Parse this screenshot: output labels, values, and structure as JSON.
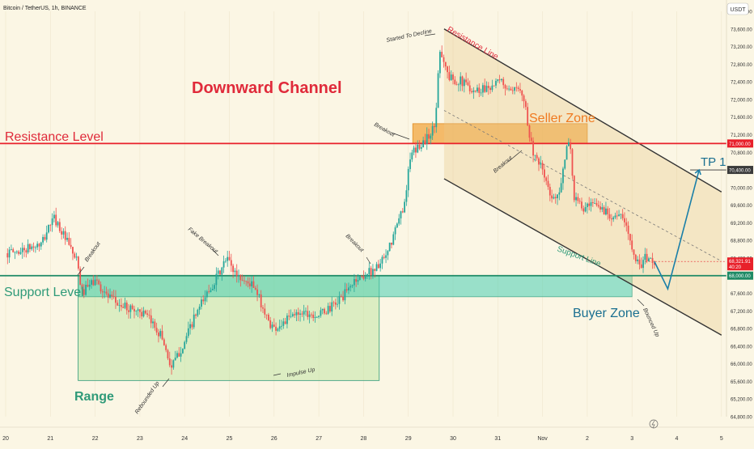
{
  "header": {
    "title": "Bitcoin / TetherUS, 1h, BINANCE",
    "currency": "USDT"
  },
  "chart_data": {
    "type": "candlestick",
    "ylim": [
      64800,
      74000
    ],
    "y_ticks": [
      "74,000.00",
      "73,600.00",
      "73,200.00",
      "72,800.00",
      "72,400.00",
      "72,000.00",
      "71,600.00",
      "71,200.00",
      "70,800.00",
      "70,400.00",
      "70,000.00",
      "69,600.00",
      "69,200.00",
      "68,800.00",
      "68,400.00",
      "68,000.00",
      "67,600.00",
      "67,200.00",
      "66,800.00",
      "66,400.00",
      "66,000.00",
      "65,600.00",
      "65,200.00",
      "64,800.00"
    ],
    "x_ticks": [
      "20",
      "21",
      "22",
      "23",
      "24",
      "25",
      "26",
      "27",
      "28",
      "29",
      "30",
      "31",
      "Nov",
      "2",
      "3",
      "4",
      "5"
    ],
    "x_range": [
      0,
      16
    ],
    "price_path": [
      [
        0.0,
        68510
      ],
      [
        0.3,
        68550
      ],
      [
        0.6,
        68650
      ],
      [
        0.8,
        68700
      ],
      [
        1.0,
        69200
      ],
      [
        1.1,
        69300
      ],
      [
        1.2,
        69100
      ],
      [
        1.4,
        68700
      ],
      [
        1.6,
        68300
      ],
      [
        1.7,
        67600
      ],
      [
        1.8,
        67700
      ],
      [
        2.0,
        67900
      ],
      [
        2.3,
        67500
      ],
      [
        2.6,
        67300
      ],
      [
        3.0,
        67200
      ],
      [
        3.3,
        66900
      ],
      [
        3.5,
        66600
      ],
      [
        3.7,
        65900
      ],
      [
        3.8,
        66100
      ],
      [
        4.0,
        66500
      ],
      [
        4.2,
        67000
      ],
      [
        4.5,
        67600
      ],
      [
        4.8,
        68100
      ],
      [
        4.95,
        68400
      ],
      [
        5.1,
        68100
      ],
      [
        5.3,
        67900
      ],
      [
        5.5,
        67800
      ],
      [
        5.7,
        67400
      ],
      [
        5.85,
        67000
      ],
      [
        6.0,
        66800
      ],
      [
        6.3,
        67000
      ],
      [
        6.6,
        67200
      ],
      [
        7.0,
        67100
      ],
      [
        7.3,
        67300
      ],
      [
        7.6,
        67600
      ],
      [
        7.8,
        67900
      ],
      [
        8.0,
        68000
      ],
      [
        8.3,
        68200
      ],
      [
        8.5,
        68400
      ],
      [
        8.7,
        69000
      ],
      [
        8.9,
        69600
      ],
      [
        9.05,
        70700
      ],
      [
        9.2,
        70900
      ],
      [
        9.4,
        71100
      ],
      [
        9.6,
        71400
      ],
      [
        9.7,
        73200
      ],
      [
        9.9,
        72500
      ],
      [
        10.2,
        72400
      ],
      [
        10.5,
        72200
      ],
      [
        10.8,
        72300
      ],
      [
        11.1,
        72400
      ],
      [
        11.3,
        72100
      ],
      [
        11.5,
        72300
      ],
      [
        11.6,
        72000
      ],
      [
        11.7,
        71200
      ],
      [
        11.85,
        70600
      ],
      [
        12.0,
        70400
      ],
      [
        12.2,
        69700
      ],
      [
        12.4,
        70000
      ],
      [
        12.6,
        71200
      ],
      [
        12.7,
        69800
      ],
      [
        12.9,
        69500
      ],
      [
        13.2,
        69600
      ],
      [
        13.5,
        69400
      ],
      [
        13.8,
        69300
      ],
      [
        14.0,
        68700
      ],
      [
        14.15,
        68200
      ],
      [
        14.3,
        68400
      ],
      [
        14.5,
        68321
      ]
    ],
    "resistance_level": 71000,
    "support_level": 68000,
    "tp1_level": 70400,
    "last_price": 68321.91,
    "channel_upper": [
      [
        9.8,
        73600
      ],
      [
        16.0,
        69900
      ]
    ],
    "channel_lower": [
      [
        9.8,
        70200
      ],
      [
        16.0,
        66650
      ]
    ],
    "channel_mid": [
      [
        9.8,
        71750
      ],
      [
        16.0,
        68330
      ]
    ],
    "range_box": {
      "x0": 1.62,
      "x1": 8.35,
      "y_top": 68000,
      "y_bottom": 65620
    },
    "support_zone": {
      "x0": 1.62,
      "x1": 14.0,
      "y_top": 68000,
      "y_bottom": 67520
    },
    "seller_zone": {
      "x0": 9.1,
      "x1": 13.0,
      "y_top": 71450,
      "y_bottom": 71000
    },
    "projection": [
      [
        14.5,
        68321
      ],
      [
        14.8,
        67700
      ],
      [
        15.5,
        70400
      ]
    ],
    "price_labels": {
      "resistance": "71,000.00",
      "tp1": "70,400.00",
      "last_price": "68,321.91",
      "countdown": "40:20",
      "support": "68,000.00"
    },
    "labels": {
      "downward_channel": "Downward Channel",
      "resistance_level": "Resistance Level",
      "support_level": "Support Level",
      "range": "Range",
      "seller_zone": "Seller Zone",
      "buyer_zone": "Buyer Zone",
      "resistance_line": "Resistance Line",
      "support_line": "Support Line",
      "tp1": "TP 1"
    },
    "annotations": [
      "Breakout",
      "Fake Breakout",
      "Breakout",
      "Breakout",
      "Breakout",
      "Started To Decline",
      "Rebounded Up",
      "Impulse Up",
      "Bounced Up"
    ],
    "colors": {
      "up": "#26a69a",
      "down": "#ef5350",
      "resistance": "#e8202a",
      "support": "#1e8a66",
      "seller": "#f0a030",
      "buyer": "#40c8b0",
      "range": "#a8d88a",
      "projection": "#1a7fa8"
    }
  }
}
